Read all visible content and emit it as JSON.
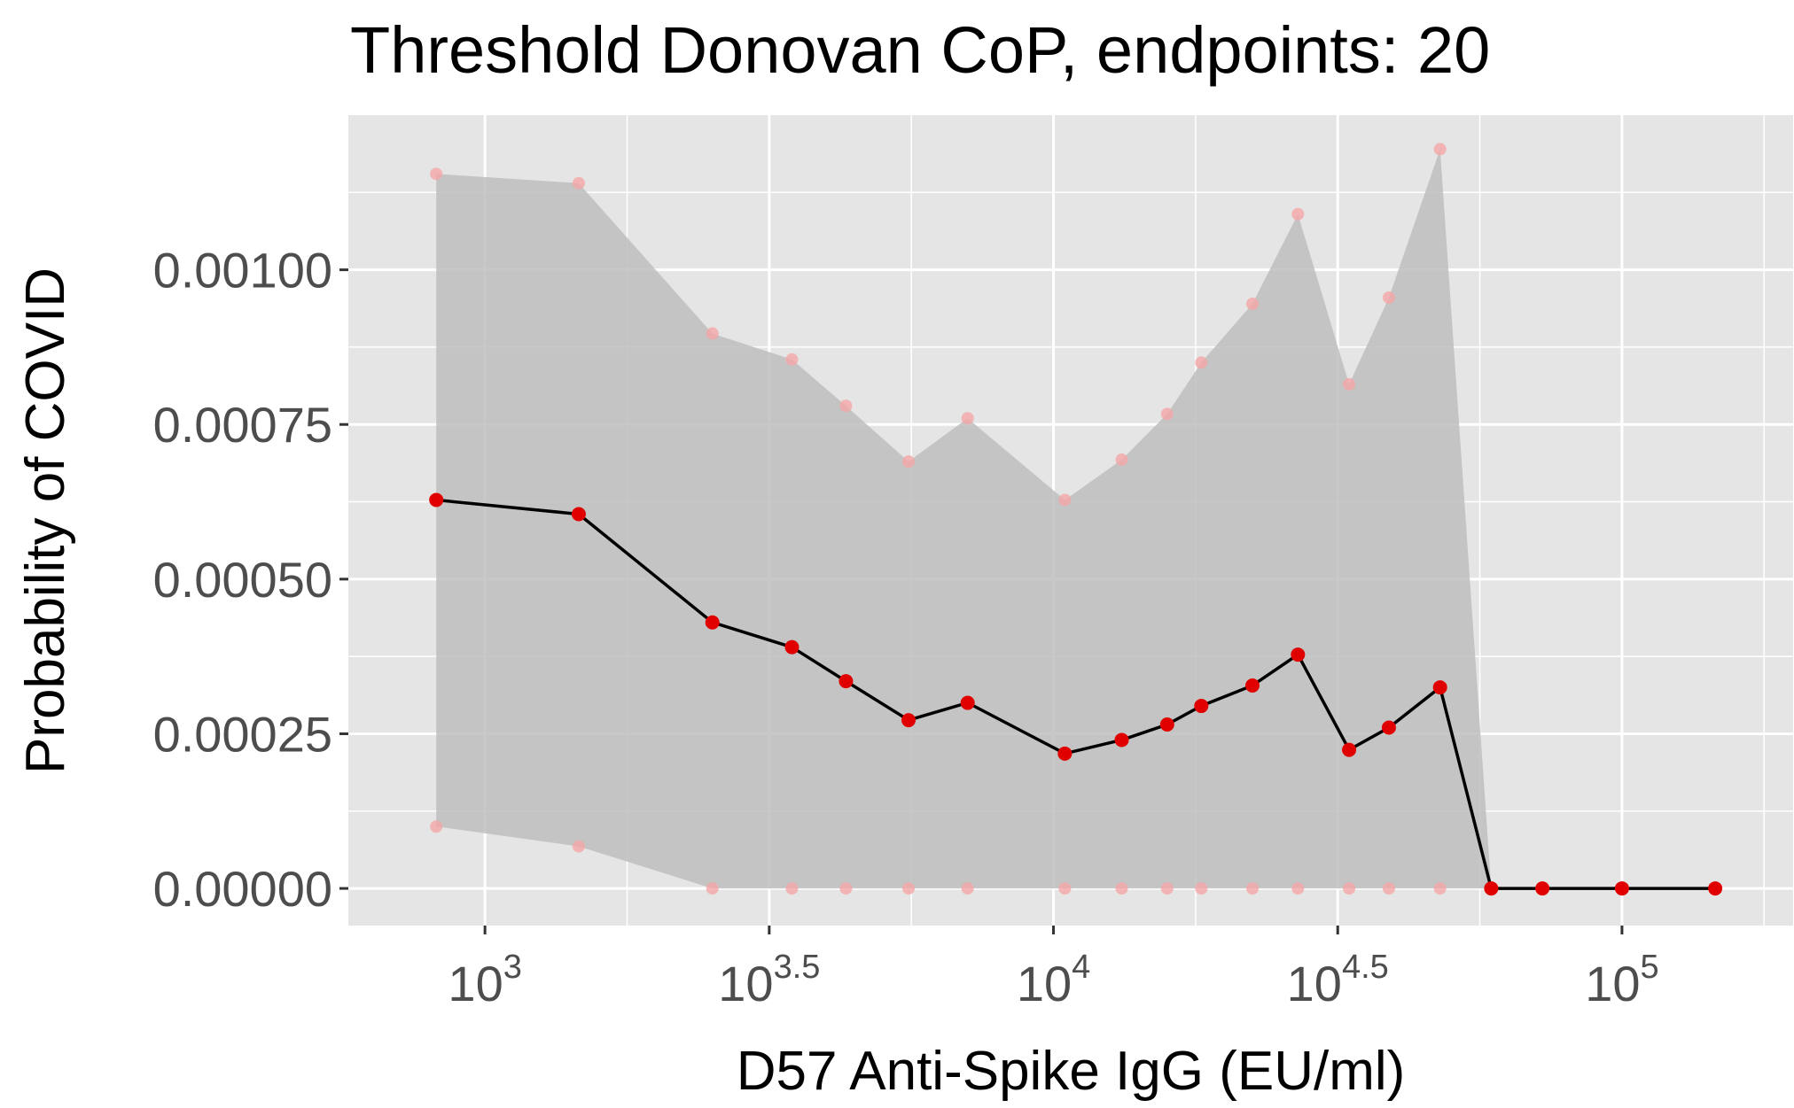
{
  "chart_data": {
    "type": "line",
    "title": "Threshold Donovan CoP, endpoints: 20",
    "xlabel": "D57 Anti-Spike IgG (EU/ml)",
    "ylabel": "Probability of COVID",
    "x_scale": "log10",
    "xlim": [
      575,
      200000
    ],
    "ylim": [
      -6e-05,
      0.00125
    ],
    "x_ticks": [
      {
        "base": "10",
        "exp": "3",
        "value": 1000
      },
      {
        "base": "10",
        "exp": "3.5",
        "value": 3162.28
      },
      {
        "base": "10",
        "exp": "4",
        "value": 10000
      },
      {
        "base": "10",
        "exp": "4.5",
        "value": 31622.8
      },
      {
        "base": "10",
        "exp": "5",
        "value": 100000
      }
    ],
    "y_ticks": [
      {
        "label": "0.00000",
        "value": 0
      },
      {
        "label": "0.00025",
        "value": 0.00025
      },
      {
        "label": "0.00050",
        "value": 0.0005
      },
      {
        "label": "0.00075",
        "value": 0.00075
      },
      {
        "label": "0.00100",
        "value": 0.001
      }
    ],
    "grid": true,
    "background": "#e5e5e5",
    "colors": {
      "ribbon": "#bebebe",
      "line": "#000000",
      "point": "#e00000",
      "ci_point": "#f4a6a6"
    },
    "series": [
      {
        "x": [
          821,
          1462,
          2512,
          3467,
          4315,
          5560,
          7063,
          10471,
          13183,
          15849,
          18197,
          22387,
          26915,
          33113,
          38905,
          47863,
          58884,
          72444,
          100000,
          145881
        ],
        "y": [
          0.000628,
          0.000605,
          0.00043,
          0.00039,
          0.000335,
          0.000272,
          0.0003,
          0.000218,
          0.00024,
          0.000265,
          0.000295,
          0.000328,
          0.000378,
          0.000224,
          0.00026,
          0.000325,
          0.0,
          0.0,
          0.0,
          0.0
        ],
        "lower": [
          0.0001,
          6.8e-05,
          0.0,
          0.0,
          0.0,
          0.0,
          0.0,
          0.0,
          0.0,
          0.0,
          0.0,
          0.0,
          0.0,
          0.0,
          0.0,
          0.0,
          0.0,
          null,
          null,
          null
        ],
        "upper": [
          0.001155,
          0.00114,
          0.000897,
          0.000855,
          0.00078,
          0.00069,
          0.00076,
          0.000628,
          0.000693,
          0.000767,
          0.00085,
          0.000945,
          0.00109,
          0.000815,
          0.000955,
          0.001195,
          0.0,
          null,
          null,
          null
        ]
      }
    ]
  }
}
